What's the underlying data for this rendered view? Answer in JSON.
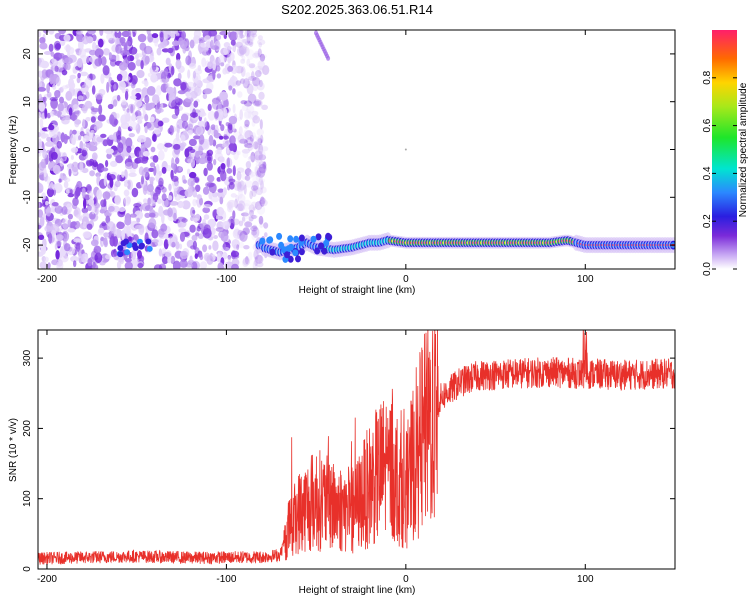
{
  "title": "S202.2025.363.06.51.R14",
  "chart_data": [
    {
      "type": "heatmap",
      "xlabel": "Height of straight line (km)",
      "ylabel": "Frequency (Hz)",
      "xlim": [
        -205,
        150
      ],
      "ylim": [
        -25,
        25
      ],
      "x_ticks": [
        -200,
        -100,
        0,
        100
      ],
      "y_ticks": [
        -20,
        -10,
        0,
        10,
        20
      ],
      "noise_region_x": [
        -205,
        -78
      ],
      "tone_track": [
        [
          -80,
          -20.5
        ],
        [
          -70,
          -21.5
        ],
        [
          -60,
          -20.5
        ],
        [
          -55,
          -19.5
        ],
        [
          -50,
          -20.5
        ],
        [
          -40,
          -21
        ],
        [
          -30,
          -20.5
        ],
        [
          -20,
          -19.5
        ],
        [
          -15,
          -19.5
        ],
        [
          -10,
          -19
        ],
        [
          0,
          -19.5
        ],
        [
          10,
          -19.5
        ],
        [
          30,
          -19.5
        ],
        [
          60,
          -19.5
        ],
        [
          80,
          -19.5
        ],
        [
          90,
          -19
        ],
        [
          95,
          -19.5
        ],
        [
          100,
          -20
        ],
        [
          120,
          -20
        ],
        [
          150,
          -20
        ]
      ],
      "colorbar": {
        "label": "Normalized spectral amplitude",
        "range": [
          0,
          1
        ],
        "ticks": [
          "0.0",
          "0.2",
          "0.4",
          "0.6",
          "0.8"
        ]
      }
    },
    {
      "type": "line",
      "xlabel": "Height of straight line (km)",
      "ylabel": "SNR (10 * v/v)",
      "xlim": [
        -205,
        150
      ],
      "ylim": [
        0,
        340
      ],
      "x_ticks": [
        -200,
        -100,
        0,
        100
      ],
      "y_ticks": [
        0,
        100,
        200,
        300
      ],
      "series_color": "#e8302a",
      "envelope": [
        [
          -205,
          15
        ],
        [
          -150,
          18
        ],
        [
          -120,
          16
        ],
        [
          -80,
          17
        ],
        [
          -70,
          20
        ],
        [
          -65,
          60
        ],
        [
          -60,
          80
        ],
        [
          -50,
          100
        ],
        [
          -40,
          90
        ],
        [
          -30,
          80
        ],
        [
          -20,
          120
        ],
        [
          -10,
          150
        ],
        [
          0,
          110
        ],
        [
          5,
          160
        ],
        [
          10,
          190
        ],
        [
          15,
          220
        ],
        [
          20,
          245
        ],
        [
          30,
          265
        ],
        [
          40,
          275
        ],
        [
          60,
          278
        ],
        [
          80,
          280
        ],
        [
          100,
          278
        ],
        [
          120,
          276
        ],
        [
          150,
          278
        ]
      ]
    }
  ]
}
